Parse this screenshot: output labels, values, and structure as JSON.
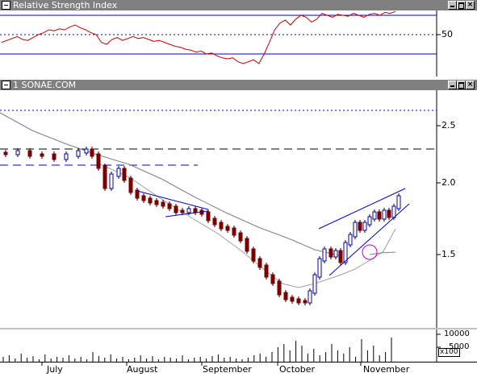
{
  "rsi_window": {
    "title": "Relative Strength Index",
    "y_ticks": [
      {
        "value": 50,
        "label": "50"
      }
    ],
    "upper_level": 70,
    "lower_level": 30,
    "series": [
      42,
      44,
      46,
      48,
      45,
      44,
      47,
      50,
      52,
      55,
      54,
      56,
      55,
      58,
      60,
      57,
      55,
      52,
      50,
      42,
      40,
      45,
      47,
      44,
      46,
      48,
      46,
      47,
      45,
      43,
      44,
      42,
      40,
      38,
      37,
      35,
      34,
      32,
      33,
      30,
      31,
      28,
      26,
      25,
      26,
      22,
      20,
      22,
      24,
      20,
      30,
      42,
      55,
      62,
      65,
      60,
      66,
      70,
      68,
      63,
      66,
      72,
      70,
      68,
      71,
      70,
      69,
      72,
      70,
      68,
      71,
      72,
      70,
      73,
      72,
      74
    ]
  },
  "price_window": {
    "title": "1 SONAE.COM",
    "y_ticks": [
      {
        "value": 2.5,
        "label": "2.5"
      },
      {
        "value": 2.0,
        "label": "2.0"
      },
      {
        "value": 1.5,
        "label": "1.5"
      }
    ],
    "x_labels": [
      "July",
      "August",
      "September",
      "October",
      "November"
    ],
    "resistance_level": 2.3,
    "support_level": 2.15,
    "upper_dotted_level": 2.62
  },
  "volume_pane": {
    "y_ticks": [
      "10000",
      "5000"
    ],
    "unit_label": "x100"
  },
  "colors": {
    "titlebar": "#808080",
    "rsi_line": "#cc0000",
    "bear_candle": "#7a0000",
    "bull_candle": "#ffffff",
    "trendline": "#0000cc",
    "moving_average": "#808080",
    "volume": "#000000",
    "highlight_circle": "#cc00cc"
  }
}
